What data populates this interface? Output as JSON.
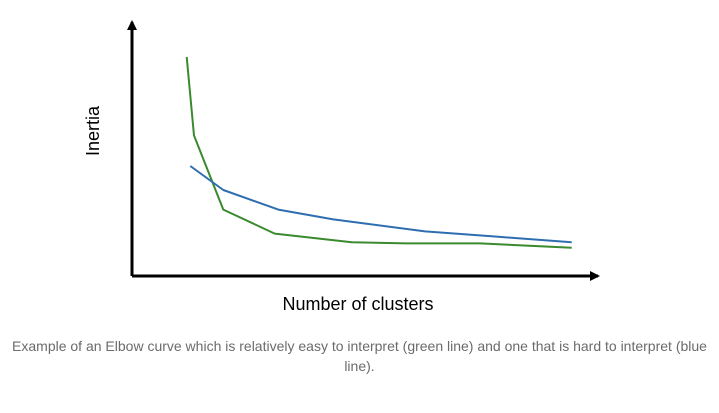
{
  "chart_data": {
    "type": "line",
    "title": "",
    "xlabel": "Number of clusters",
    "ylabel": "Inertia",
    "axis_ticks": false,
    "grid": false,
    "legend": "none",
    "xlim": [
      0,
      12
    ],
    "ylim": [
      0,
      100
    ],
    "series": [
      {
        "color": "#3a8a2e",
        "description_in_caption": "green line",
        "x": [
          1,
          1.2,
          2,
          3.4,
          5.5,
          7,
          9,
          11.5
        ],
        "y": [
          100,
          64,
          30,
          19,
          15,
          14.5,
          14.5,
          12.5
        ]
      },
      {
        "color": "#2e6eb0",
        "description_in_caption": "blue line",
        "x": [
          1.1,
          2,
          3.5,
          5,
          7.5,
          9.5,
          11.5
        ],
        "y": [
          50,
          39,
          30,
          25.5,
          20,
          17.5,
          15
        ]
      }
    ]
  },
  "caption": "Example of an Elbow curve which is relatively easy to interpret (green line) and one that is hard to interpret (blue line).",
  "colors": {
    "axis": "#000000",
    "caption_text": "#6b6b6b",
    "background": "#ffffff"
  }
}
